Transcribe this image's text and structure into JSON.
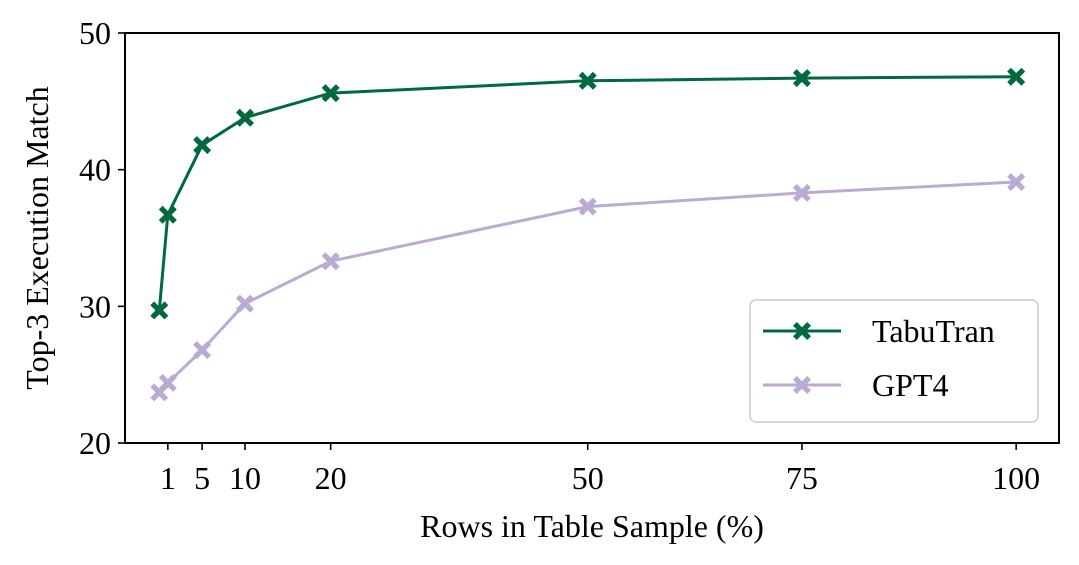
{
  "chart_data": {
    "type": "line",
    "xlabel": "Rows in Table Sample (%)",
    "ylabel": "Top-3 Execution Match",
    "xlim": [
      -4,
      105
    ],
    "ylim": [
      20,
      50
    ],
    "xticks": [
      1,
      5,
      10,
      20,
      50,
      75,
      100
    ],
    "yticks": [
      20,
      30,
      40,
      50
    ],
    "grid": false,
    "legend_position": "lower-right",
    "x": [
      0,
      1,
      5,
      10,
      20,
      50,
      75,
      100
    ],
    "series": [
      {
        "name": "TabuTran",
        "color": "#006940",
        "marker": "X",
        "values": [
          29.7,
          36.7,
          41.8,
          43.8,
          45.6,
          46.5,
          46.7,
          46.8
        ]
      },
      {
        "name": "GPT4",
        "color": "#BBAAD3",
        "marker": "X",
        "values": [
          23.7,
          24.4,
          26.8,
          30.2,
          33.3,
          37.3,
          38.3,
          39.1
        ]
      }
    ]
  }
}
